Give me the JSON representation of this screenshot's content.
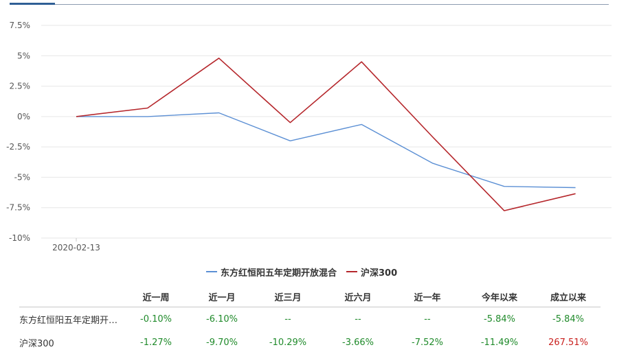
{
  "chart_data": {
    "type": "line",
    "x": [
      "2020-02-13",
      "",
      "",
      "",
      "",
      "",
      "",
      ""
    ],
    "xtick_labels": [
      "2020-02-13"
    ],
    "y_ticks": [
      "7.5%",
      "5%",
      "2.5%",
      "0%",
      "-2.5%",
      "-5%",
      "-7.5%",
      "-10%"
    ],
    "y_tick_values": [
      7.5,
      5,
      2.5,
      0,
      -2.5,
      -5,
      -7.5,
      -10
    ],
    "ylim": [
      -10,
      7.5
    ],
    "grid": true,
    "legend_position": "bottom",
    "series": [
      {
        "name": "东方红恒阳五年定期开放混合",
        "color": "#5b8fd4",
        "values": [
          0,
          0,
          0.3,
          -2,
          -0.65,
          -3.85,
          -5.75,
          -5.85
        ]
      },
      {
        "name": "沪深300",
        "color": "#b5262b",
        "values": [
          0,
          0.7,
          4.8,
          -0.5,
          4.5,
          -1.7,
          -7.75,
          -6.35
        ]
      }
    ]
  },
  "table": {
    "headers": [
      "",
      "近一周",
      "近一月",
      "近三月",
      "近六月",
      "近一年",
      "今年以来",
      "成立以来"
    ],
    "rows": [
      {
        "name": "东方红恒阳五年定期开放混合",
        "cells": [
          {
            "text": "-0.10%",
            "tone": "neg"
          },
          {
            "text": "-6.10%",
            "tone": "neg"
          },
          {
            "text": "--",
            "tone": "na"
          },
          {
            "text": "--",
            "tone": "na"
          },
          {
            "text": "--",
            "tone": "na"
          },
          {
            "text": "-5.84%",
            "tone": "neg"
          },
          {
            "text": "-5.84%",
            "tone": "neg"
          }
        ]
      },
      {
        "name": "沪深300",
        "cells": [
          {
            "text": "-1.27%",
            "tone": "neg"
          },
          {
            "text": "-9.70%",
            "tone": "neg"
          },
          {
            "text": "-10.29%",
            "tone": "neg"
          },
          {
            "text": "-3.66%",
            "tone": "neg"
          },
          {
            "text": "-7.52%",
            "tone": "neg"
          },
          {
            "text": "-11.49%",
            "tone": "neg"
          },
          {
            "text": "267.51%",
            "tone": "pos"
          }
        ]
      }
    ]
  },
  "colors": {
    "accent": "#2f5f95",
    "grid": "#e6e6e6",
    "positive": "#c9201e",
    "negative": "#1f8a2a"
  }
}
